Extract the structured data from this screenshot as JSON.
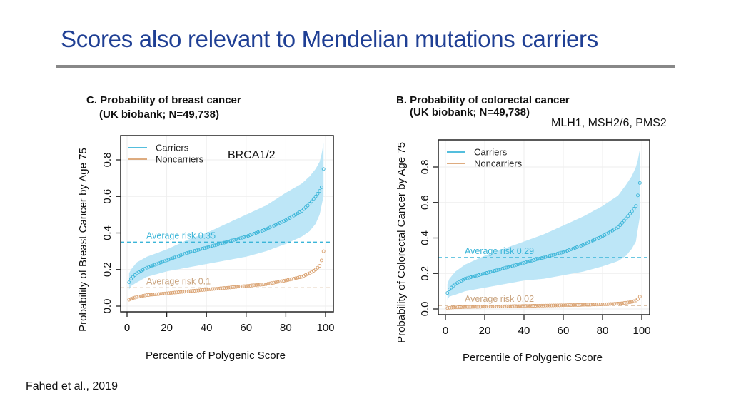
{
  "slide": {
    "title": "Scores also relevant to Mendelian mutations carriers",
    "citation": "Fahed et al., 2019",
    "colors": {
      "title": "#1f3f94",
      "carriers": "#3bb5d8",
      "carriers_band": "#bde6f7",
      "noncarriers": "#d9a06e"
    }
  },
  "chart_data": [
    {
      "type": "scatter",
      "panel_id": "breast",
      "title_line1": "C. Probability of breast cancer",
      "title_line2": "(UK biobank; N=49,738)",
      "annotation": "BRCA1/2",
      "xlabel": "Percentile of Polygenic Score",
      "ylabel": "Probability of Breast Cancer by Age 75",
      "xlim": [
        0,
        100
      ],
      "ylim": [
        0,
        0.9
      ],
      "xticks": [
        "0",
        "20",
        "40",
        "60",
        "80",
        "100"
      ],
      "yticks": [
        "0.0",
        "0.2",
        "0.4",
        "0.6",
        "0.8"
      ],
      "grid": true,
      "legend": {
        "position": "top-left",
        "entries": [
          "Carriers",
          "Noncarriers"
        ]
      },
      "series": [
        {
          "name": "Carriers",
          "x": [
            1,
            2,
            5,
            10,
            20,
            30,
            40,
            50,
            60,
            70,
            80,
            88,
            92,
            95,
            97,
            98,
            99
          ],
          "y": [
            0.13,
            0.15,
            0.18,
            0.21,
            0.25,
            0.29,
            0.32,
            0.35,
            0.38,
            0.42,
            0.47,
            0.52,
            0.56,
            0.6,
            0.63,
            0.65,
            0.75
          ],
          "band_lower": [
            0.09,
            0.11,
            0.13,
            0.16,
            0.19,
            0.21,
            0.23,
            0.25,
            0.27,
            0.3,
            0.34,
            0.38,
            0.41,
            0.45,
            0.5,
            0.55,
            0.6
          ],
          "band_upper": [
            0.18,
            0.2,
            0.24,
            0.27,
            0.31,
            0.36,
            0.4,
            0.45,
            0.5,
            0.55,
            0.62,
            0.67,
            0.71,
            0.75,
            0.79,
            0.83,
            0.89
          ],
          "average_risk": 0.35,
          "average_label": "Average risk 0.35"
        },
        {
          "name": "Noncarriers",
          "x": [
            1,
            2,
            5,
            10,
            20,
            30,
            40,
            50,
            60,
            70,
            80,
            88,
            92,
            95,
            97,
            98,
            99
          ],
          "y": [
            0.035,
            0.04,
            0.05,
            0.06,
            0.07,
            0.08,
            0.09,
            0.1,
            0.11,
            0.12,
            0.14,
            0.16,
            0.18,
            0.2,
            0.22,
            0.25,
            0.3
          ],
          "average_risk": 0.1,
          "average_label": "Average risk 0.1"
        }
      ]
    },
    {
      "type": "scatter",
      "panel_id": "colorectal",
      "title_line1": "B. Probability of colorectal cancer",
      "title_line2": "(UK biobank; N=49,738)",
      "annotation": "MLH1, MSH2/6, PMS2",
      "xlabel": "Percentile of Polygenic Score",
      "ylabel": "Probability of Colorectal Cancer by Age 75",
      "xlim": [
        0,
        100
      ],
      "ylim": [
        0,
        0.9
      ],
      "xticks": [
        "0",
        "20",
        "40",
        "60",
        "80",
        "100"
      ],
      "yticks": [
        "0.0",
        "0.2",
        "0.4",
        "0.6",
        "0.8"
      ],
      "grid": true,
      "legend": {
        "position": "top-left",
        "entries": [
          "Carriers",
          "Noncarriers"
        ]
      },
      "series": [
        {
          "name": "Carriers",
          "x": [
            1,
            2,
            5,
            10,
            20,
            30,
            40,
            50,
            60,
            70,
            80,
            88,
            92,
            95,
            97,
            98,
            99
          ],
          "y": [
            0.09,
            0.11,
            0.14,
            0.17,
            0.2,
            0.23,
            0.26,
            0.29,
            0.32,
            0.36,
            0.41,
            0.46,
            0.51,
            0.55,
            0.58,
            0.64,
            0.71
          ],
          "band_lower": [
            0.05,
            0.07,
            0.08,
            0.1,
            0.12,
            0.14,
            0.16,
            0.17,
            0.19,
            0.21,
            0.24,
            0.27,
            0.3,
            0.34,
            0.38,
            0.45,
            0.52
          ],
          "band_upper": [
            0.14,
            0.17,
            0.21,
            0.25,
            0.3,
            0.34,
            0.38,
            0.42,
            0.47,
            0.52,
            0.58,
            0.64,
            0.7,
            0.75,
            0.8,
            0.84,
            0.9
          ],
          "average_risk": 0.29,
          "average_label": "Average risk 0.29"
        },
        {
          "name": "Noncarriers",
          "x": [
            1,
            2,
            5,
            10,
            20,
            30,
            40,
            50,
            60,
            70,
            80,
            88,
            92,
            95,
            97,
            98,
            99
          ],
          "y": [
            0.005,
            0.007,
            0.009,
            0.011,
            0.013,
            0.015,
            0.017,
            0.019,
            0.021,
            0.023,
            0.026,
            0.03,
            0.035,
            0.04,
            0.048,
            0.055,
            0.07
          ],
          "average_risk": 0.02,
          "average_label": "Average risk 0.02"
        }
      ]
    }
  ]
}
